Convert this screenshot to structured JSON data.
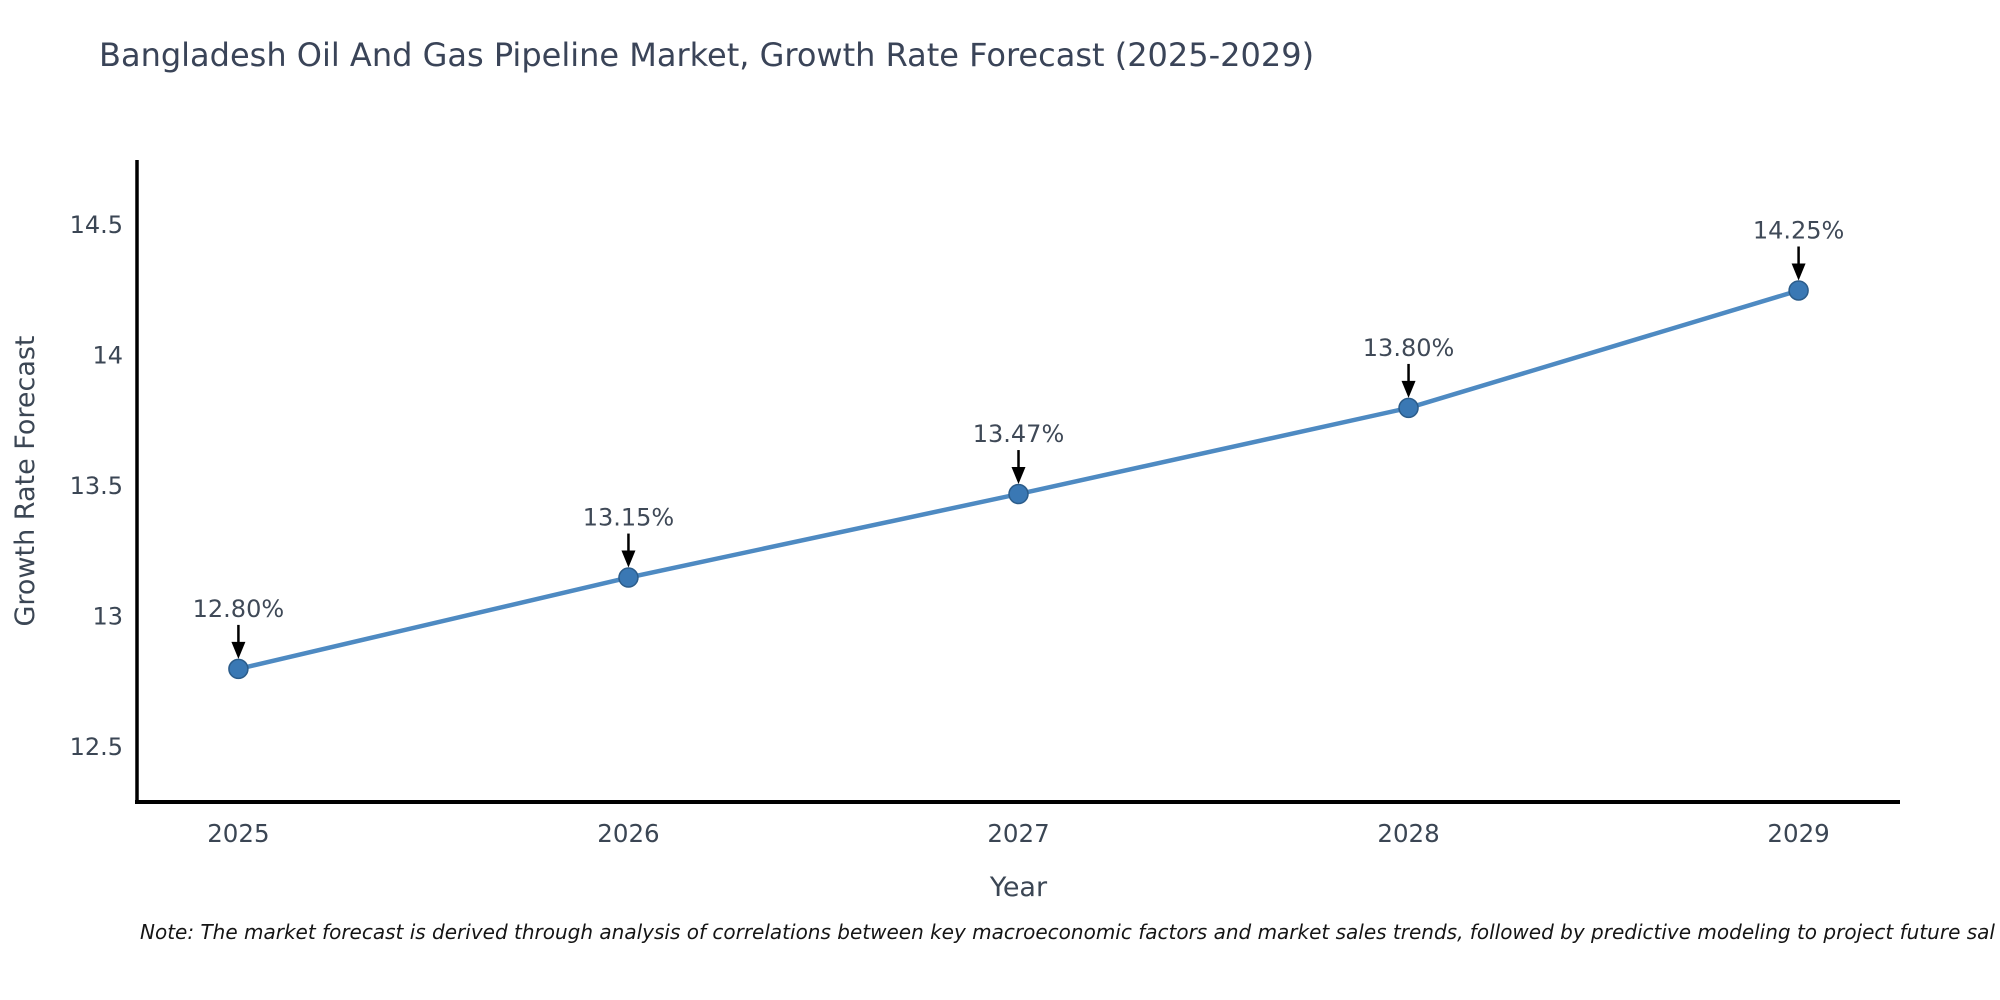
{
  "note": "Note: The market forecast is derived through analysis of correlations between key macroeconomic factors and market sales trends, followed by predictive modeling to project future sal",
  "chart_data": {
    "type": "line",
    "title": "Bangladesh Oil And Gas Pipeline Market, Growth Rate Forecast (2025-2029)",
    "x": [
      2025,
      2026,
      2027,
      2028,
      2029
    ],
    "values": [
      12.8,
      13.15,
      13.47,
      13.8,
      14.25
    ],
    "point_labels": [
      "12.80%",
      "13.15%",
      "13.47%",
      "13.80%",
      "14.25%"
    ],
    "xticks": [
      "2025",
      "2026",
      "2027",
      "2028",
      "2029"
    ],
    "yticks": [
      "12.5",
      "13",
      "13.5",
      "14",
      "14.5"
    ],
    "ytick_values": [
      12.5,
      13.0,
      13.5,
      14.0,
      14.5
    ],
    "xlabel": "Year",
    "ylabel": "Growth Rate Forecast",
    "xlim": [
      2024.74,
      2029.26
    ],
    "ylim": [
      12.29,
      14.75
    ],
    "grid": false,
    "legend_position": "none",
    "annotation_style": "down-arrow-above-each-point",
    "colors": {
      "line": "#4e8ac2",
      "marker": "#3a78b4",
      "marker_edge": "#2b5c8a",
      "axis": "#000000",
      "tick_text": "#3b4654",
      "title_text": "#3a4458",
      "annotation_text": "#3f4957",
      "arrow": "#000000",
      "note_text": "#151515",
      "background": "#ffffff"
    }
  }
}
